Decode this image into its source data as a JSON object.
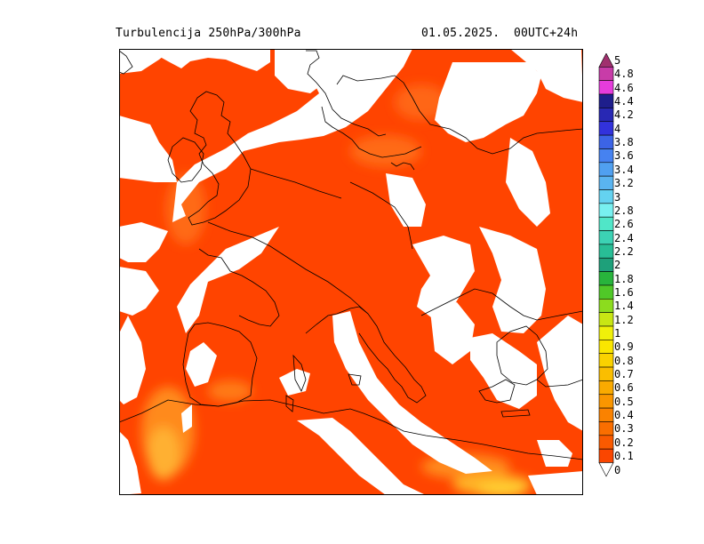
{
  "header": {
    "title": "Turbulencija 250hPa/300hPa",
    "date": "01.05.2025.",
    "run": "00UTC+24h"
  },
  "legend": {
    "unit": "",
    "levels": [
      {
        "label": "5",
        "color": "#a0306e"
      },
      {
        "label": "4.8",
        "color": "#c83ca8"
      },
      {
        "label": "4.6",
        "color": "#e63cdc"
      },
      {
        "label": "4.4",
        "color": "#1e1e8c"
      },
      {
        "label": "4.2",
        "color": "#2828b4"
      },
      {
        "label": "4",
        "color": "#3232dc"
      },
      {
        "label": "3.8",
        "color": "#3c64e6"
      },
      {
        "label": "3.6",
        "color": "#4682f0"
      },
      {
        "label": "3.4",
        "color": "#50a0f0"
      },
      {
        "label": "3.2",
        "color": "#5ab4f0"
      },
      {
        "label": "3",
        "color": "#64d2f0"
      },
      {
        "label": "2.8",
        "color": "#78f0f0"
      },
      {
        "label": "2.6",
        "color": "#50e6c8"
      },
      {
        "label": "2.4",
        "color": "#3cd2b4"
      },
      {
        "label": "2.2",
        "color": "#28be96"
      },
      {
        "label": "2",
        "color": "#1ea07a"
      },
      {
        "label": "1.8",
        "color": "#28b43c"
      },
      {
        "label": "1.6",
        "color": "#50c828"
      },
      {
        "label": "1.4",
        "color": "#8cdc1e"
      },
      {
        "label": "1.2",
        "color": "#c8e614"
      },
      {
        "label": "1",
        "color": "#f0f00a"
      },
      {
        "label": "0.9",
        "color": "#fae600"
      },
      {
        "label": "0.8",
        "color": "#fad200"
      },
      {
        "label": "0.7",
        "color": "#fabe00"
      },
      {
        "label": "0.6",
        "color": "#faaa00"
      },
      {
        "label": "0.5",
        "color": "#fa9600"
      },
      {
        "label": "0.4",
        "color": "#fa8200"
      },
      {
        "label": "0.3",
        "color": "#fa6e00"
      },
      {
        "label": "0.2",
        "color": "#fa5a00"
      },
      {
        "label": "0.1",
        "color": "#fa4600"
      },
      {
        "label": "0",
        "color": "#ffffff"
      }
    ]
  },
  "colors": {
    "field": "#ff4400",
    "field_moderate": "#ff6a10",
    "field_high": "#ffb020",
    "field_peak": "#ffd030",
    "background": "#ffffff",
    "coast": "#000000"
  }
}
